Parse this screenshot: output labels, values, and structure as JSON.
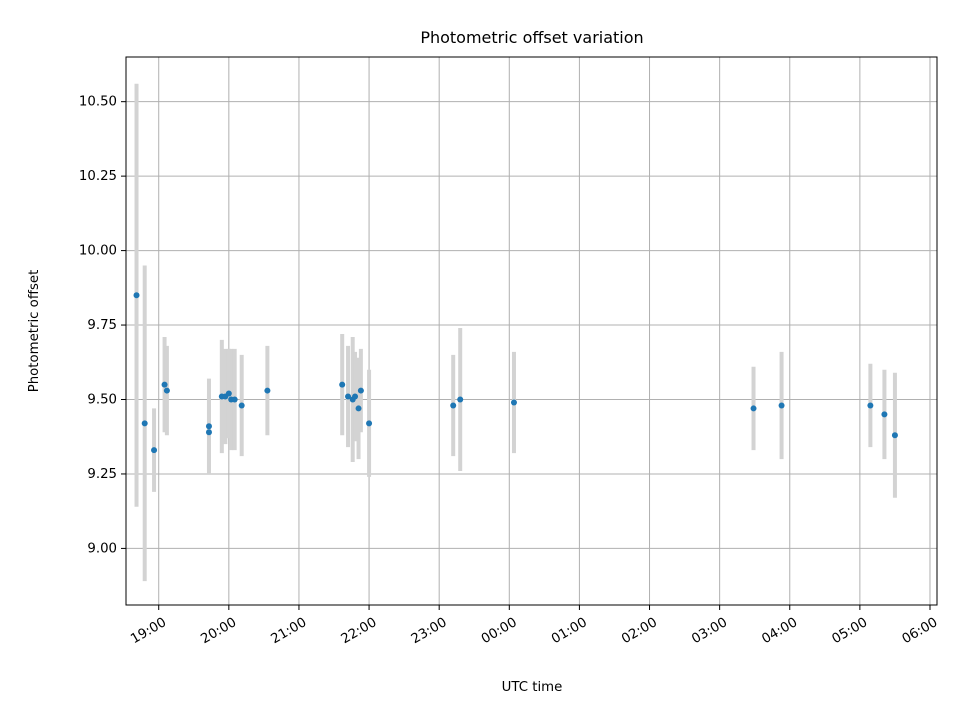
{
  "chart_data": {
    "type": "scatter",
    "title": "Photometric offset variation",
    "xlabel": "UTC time",
    "ylabel": "Photometric offset",
    "x_tick_labels": [
      "19:00",
      "20:00",
      "21:00",
      "22:00",
      "23:00",
      "00:00",
      "01:00",
      "02:00",
      "03:00",
      "04:00",
      "05:00",
      "06:00"
    ],
    "y_tick_labels": [
      "9.00",
      "9.25",
      "9.50",
      "9.75",
      "10.00",
      "10.25",
      "10.50"
    ],
    "xlim": [
      "18:32",
      "06:06"
    ],
    "ylim": [
      8.81,
      10.65
    ],
    "grid": true,
    "series": [
      {
        "points": [
          {
            "x": "18:41",
            "y": 9.85,
            "err": 0.71
          },
          {
            "x": "18:48",
            "y": 9.42,
            "err": 0.53
          },
          {
            "x": "18:56",
            "y": 9.33,
            "err": 0.14
          },
          {
            "x": "19:05",
            "y": 9.55,
            "err": 0.16
          },
          {
            "x": "19:07",
            "y": 9.53,
            "err": 0.15
          },
          {
            "x": "19:43",
            "y": 9.41,
            "err": 0.16
          },
          {
            "x": "19:43",
            "y": 9.39,
            "err": 0.13
          },
          {
            "x": "19:54",
            "y": 9.51,
            "err": 0.19
          },
          {
            "x": "19:57",
            "y": 9.51,
            "err": 0.16
          },
          {
            "x": "20:00",
            "y": 9.52,
            "err": 0.15
          },
          {
            "x": "20:02",
            "y": 9.5,
            "err": 0.17
          },
          {
            "x": "20:05",
            "y": 9.5,
            "err": 0.17
          },
          {
            "x": "20:11",
            "y": 9.48,
            "err": 0.17
          },
          {
            "x": "20:33",
            "y": 9.53,
            "err": 0.15
          },
          {
            "x": "21:37",
            "y": 9.55,
            "err": 0.17
          },
          {
            "x": "21:42",
            "y": 9.51,
            "err": 0.17
          },
          {
            "x": "21:46",
            "y": 9.5,
            "err": 0.21
          },
          {
            "x": "21:48",
            "y": 9.51,
            "err": 0.15
          },
          {
            "x": "21:51",
            "y": 9.47,
            "err": 0.17
          },
          {
            "x": "21:53",
            "y": 9.53,
            "err": 0.14
          },
          {
            "x": "22:00",
            "y": 9.42,
            "err": 0.18
          },
          {
            "x": "23:12",
            "y": 9.48,
            "err": 0.17
          },
          {
            "x": "23:18",
            "y": 9.5,
            "err": 0.24
          },
          {
            "x": "00:04",
            "y": 9.49,
            "err": 0.17
          },
          {
            "x": "03:29",
            "y": 9.47,
            "err": 0.14
          },
          {
            "x": "03:53",
            "y": 9.48,
            "err": 0.18
          },
          {
            "x": "05:09",
            "y": 9.48,
            "err": 0.14
          },
          {
            "x": "05:21",
            "y": 9.45,
            "err": 0.15
          },
          {
            "x": "05:30",
            "y": 9.38,
            "err": 0.21
          }
        ]
      }
    ],
    "colors": {
      "marker": "#1f77b4",
      "errorbar": "#d3d3d3",
      "grid": "#b0b0b0",
      "axes": "#000000"
    }
  }
}
